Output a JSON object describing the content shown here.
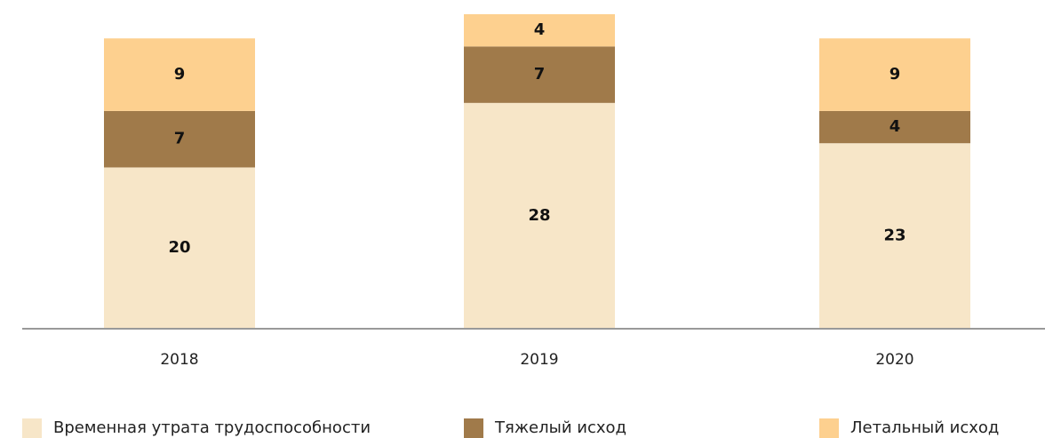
{
  "chart_data": {
    "type": "stacked_bar",
    "categories": [
      "2018",
      "2019",
      "2020"
    ],
    "series": [
      {
        "name": "Временная утрата трудоспособности",
        "color": "#f7e6c8",
        "values": [
          20,
          28,
          23
        ]
      },
      {
        "name": "Тяжелый исход",
        "color": "#a07a4a",
        "values": [
          7,
          7,
          4
        ]
      },
      {
        "name": "Летальный исход",
        "color": "#fdd08f",
        "values": [
          9,
          4,
          9
        ]
      }
    ]
  }
}
